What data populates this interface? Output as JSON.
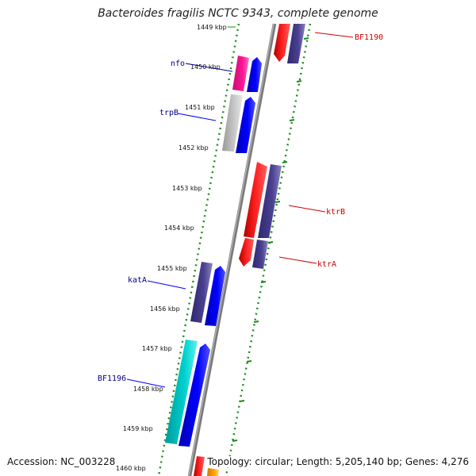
{
  "title": "Bacteroides fragilis NCTC 9343, complete genome",
  "accession": "Accession: NC_003228",
  "topology": "Topology: circular; Length: 5,205,140 bp; Genes: 4,276",
  "ticks": [
    {
      "label": "1449 kbp",
      "kbp": 1449
    },
    {
      "label": "1450 kbp",
      "kbp": 1450
    },
    {
      "label": "1451 kbp",
      "kbp": 1451
    },
    {
      "label": "1452 kbp",
      "kbp": 1452
    },
    {
      "label": "1453 kbp",
      "kbp": 1453
    },
    {
      "label": "1454 kbp",
      "kbp": 1454
    },
    {
      "label": "1455 kbp",
      "kbp": 1455
    },
    {
      "label": "1456 kbp",
      "kbp": 1456
    },
    {
      "label": "1457 kbp",
      "kbp": 1457
    },
    {
      "label": "1458 kbp",
      "kbp": 1458
    },
    {
      "label": "1459 kbp",
      "kbp": 1459
    },
    {
      "label": "1460 kbp",
      "kbp": 1460
    }
  ],
  "gene_labels": {
    "nfo": "nfo",
    "trpB": "trpB",
    "katA": "katA",
    "BF1196": "BF1196",
    "BF1190": "BF1190",
    "ktrB": "ktrB",
    "ktrA": "ktrA"
  },
  "colors": {
    "backbone": "#8a8a8a",
    "guide": "#1a8a1a",
    "label_blue": "#00008b",
    "label_red": "#cc0000",
    "red": "#ff0000",
    "dark_purple": "#483d8b",
    "blue": "#0000ff",
    "magenta": "#ff1493",
    "gray": "#bbbbbb",
    "cyan": "#00cdcd",
    "orange": "#ffa500"
  }
}
